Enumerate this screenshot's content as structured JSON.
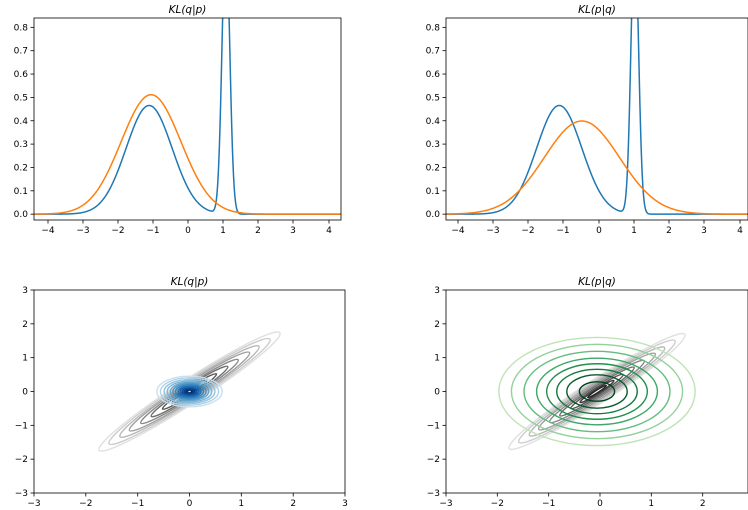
{
  "chart_data": [
    {
      "type": "line",
      "title": "KL(q|p)",
      "xlim": [
        -4,
        4
      ],
      "ylim": [
        -0.025,
        0.84
      ],
      "xticks": [
        "−4",
        "−3",
        "−2",
        "−1",
        "0",
        "1",
        "2",
        "3",
        "4"
      ],
      "yticks": [
        "0.0",
        "0.1",
        "0.2",
        "0.3",
        "0.4",
        "0.5",
        "0.6",
        "0.7",
        "0.8"
      ],
      "series": [
        {
          "color": "#1f77b4",
          "components": [
            {
              "w": 0.7,
              "mu": -1.0,
              "sigma": 0.6
            },
            {
              "w": 0.3,
              "mu": 1.0,
              "sigma": 0.1
            }
          ]
        },
        {
          "color": "#ff7f0e",
          "components": [
            {
              "w": 1.0,
              "mu": -0.95,
              "sigma": 0.78
            }
          ]
        }
      ]
    },
    {
      "type": "line",
      "title": "KL(p|q)",
      "xlim": [
        -4,
        4
      ],
      "ylim": [
        -0.025,
        0.84
      ],
      "xticks": [
        "−4",
        "−3",
        "−2",
        "−1",
        "0",
        "1",
        "2",
        "3",
        "4"
      ],
      "yticks": [
        "0.0",
        "0.1",
        "0.2",
        "0.3",
        "0.4",
        "0.5",
        "0.6",
        "0.7",
        "0.8"
      ],
      "series": [
        {
          "color": "#1f77b4",
          "components": [
            {
              "w": 0.7,
              "mu": -1.0,
              "sigma": 0.6
            },
            {
              "w": 0.3,
              "mu": 1.0,
              "sigma": 0.1
            }
          ]
        },
        {
          "color": "#ff7f0e",
          "components": [
            {
              "w": 1.0,
              "mu": -0.4,
              "sigma": 1.0
            }
          ]
        }
      ]
    },
    {
      "type": "contour",
      "title": "KL(q|p)",
      "xlim": [
        -3,
        3
      ],
      "ylim": [
        -3,
        3
      ],
      "xticks": [
        "−3",
        "−2",
        "−1",
        "0",
        "1",
        "2",
        "3"
      ],
      "yticks": [
        "−3",
        "−2",
        "−1",
        "0",
        "1",
        "2",
        "3"
      ],
      "ellipse_sets": [
        {
          "palette": "gray",
          "semi_major": [
            0.22,
            0.4,
            0.62,
            0.88,
            1.12,
            1.38,
            1.6,
            1.85,
            2.08
          ],
          "aspect": 0.17,
          "angle_deg": 33
        },
        {
          "palette": "blue",
          "semi_major": [
            0.06,
            0.1,
            0.14,
            0.18,
            0.22,
            0.27,
            0.32,
            0.37,
            0.43,
            0.49,
            0.56,
            0.63
          ],
          "aspect": 0.72,
          "angle_deg": 0
        }
      ]
    },
    {
      "type": "contour",
      "title": "KL(p|q)",
      "xlim": [
        -3,
        3
      ],
      "ylim": [
        -3,
        3
      ],
      "xticks": [
        "−3",
        "−2",
        "−1",
        "0",
        "1",
        "2"
      ],
      "yticks": [
        "−3",
        "−2",
        "−1",
        "0",
        "1",
        "2",
        "3"
      ],
      "ellipse_sets": [
        {
          "palette": "gray",
          "semi_major": [
            0.22,
            0.4,
            0.62,
            0.88,
            1.12,
            1.38,
            1.6,
            1.85,
            2.08
          ],
          "aspect": 0.17,
          "angle_deg": 33
        },
        {
          "palette": "green",
          "semi_major": [
            0.35,
            0.6,
            0.8,
            1.0,
            1.2,
            1.45,
            1.7,
            1.95
          ],
          "aspect": 0.82,
          "angle_deg": 0
        }
      ]
    }
  ]
}
